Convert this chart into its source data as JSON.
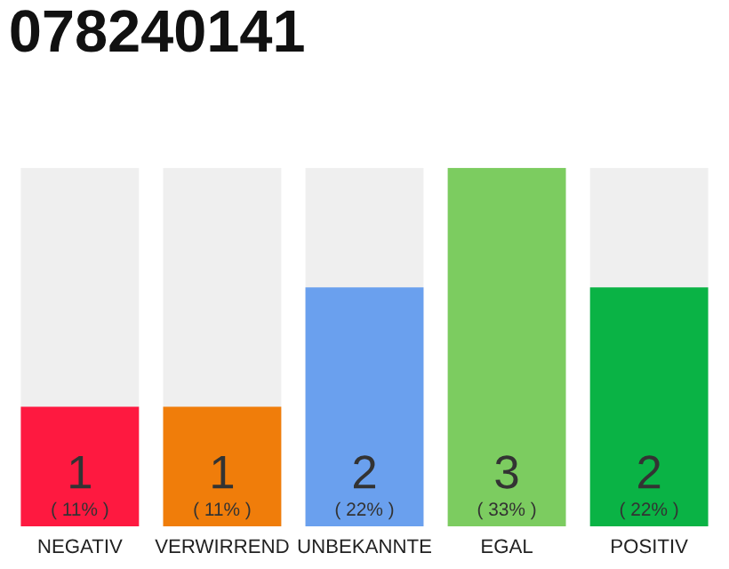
{
  "chart_data": {
    "type": "bar",
    "title": "078240141",
    "categories": [
      "NEGATIV",
      "VERWIRREND",
      "UNBEKANNTE",
      "EGAL",
      "POSITIV"
    ],
    "values": [
      1,
      1,
      2,
      3,
      2
    ],
    "colors": [
      "#fe1940",
      "#f07d0a",
      "#6aa0ee",
      "#7ccc60",
      "#0ab345"
    ],
    "data_labels": true,
    "annotations": [
      "( 11% )",
      "( 11% )",
      "( 22% )",
      "( 33% )",
      "( 22% )"
    ],
    "grid": false,
    "legend": false
  }
}
